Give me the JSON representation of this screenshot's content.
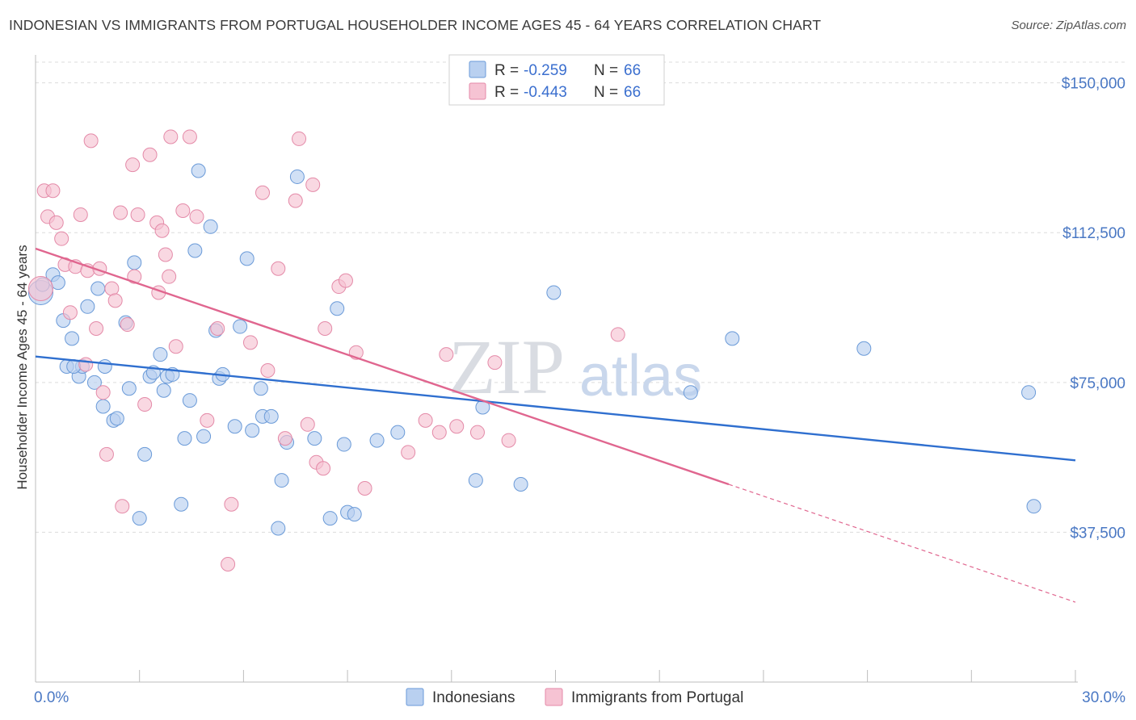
{
  "title": "INDONESIAN VS IMMIGRANTS FROM PORTUGAL HOUSEHOLDER INCOME AGES 45 - 64 YEARS CORRELATION CHART",
  "source": "Source: ZipAtlas.com",
  "watermark": {
    "zip": "ZIP",
    "atlas": "atlas"
  },
  "colors": {
    "blue_fill": "#b9d0f0",
    "blue_stroke": "#6a9ad8",
    "blue_line": "#2f6fcf",
    "pink_fill": "#f6c3d3",
    "pink_stroke": "#e48aa8",
    "pink_line": "#e0668f",
    "grid": "#dcdcdc",
    "axis_text": "#4a78c4"
  },
  "legend": {
    "rows": [
      {
        "r_label": "R =",
        "r_value": "-0.259",
        "n_label": "N =",
        "n_value": "66",
        "color": "blue"
      },
      {
        "r_label": "R =",
        "r_value": "-0.443",
        "n_label": "N =",
        "n_value": "66",
        "color": "pink"
      }
    ]
  },
  "bottom_legend": {
    "series1": "Indonesians",
    "series2": "Immigrants from Portugal"
  },
  "chart_data": {
    "type": "scatter",
    "title": "INDONESIAN VS IMMIGRANTS FROM PORTUGAL HOUSEHOLDER INCOME AGES 45 - 64 YEARS CORRELATION CHART",
    "xlabel": "",
    "ylabel": "Householder Income Ages 45 - 64 years",
    "xlim": [
      0,
      30
    ],
    "ylim": [
      0,
      157000
    ],
    "x_tick_labels": {
      "left": "0.0%",
      "right": "30.0%"
    },
    "y_ticks": [
      {
        "value": 37500,
        "label": "$37,500"
      },
      {
        "value": 75000,
        "label": "$75,000"
      },
      {
        "value": 112500,
        "label": "$112,500"
      },
      {
        "value": 150000,
        "label": "$150,000"
      }
    ],
    "series": [
      {
        "name": "Indonesians",
        "color": "blue",
        "r": -0.259,
        "n": 66,
        "trend": {
          "x0": 0,
          "y0": 81500,
          "x1": 30,
          "y1": 55500,
          "dashed_from": null
        },
        "points": [
          [
            0.15,
            97500,
            "lg"
          ],
          [
            0.2,
            99500
          ],
          [
            0.5,
            102000
          ],
          [
            0.65,
            100000
          ],
          [
            0.8,
            90500
          ],
          [
            0.9,
            79000
          ],
          [
            1.05,
            86000
          ],
          [
            1.25,
            76500
          ],
          [
            1.35,
            79000
          ],
          [
            1.5,
            94000
          ],
          [
            1.7,
            75000
          ],
          [
            1.8,
            98500
          ],
          [
            1.95,
            69000
          ],
          [
            2.0,
            79000
          ],
          [
            2.25,
            65500
          ],
          [
            2.35,
            66000
          ],
          [
            2.6,
            90000
          ],
          [
            2.7,
            73500
          ],
          [
            2.85,
            105000
          ],
          [
            3.0,
            41000
          ],
          [
            3.15,
            57000
          ],
          [
            3.3,
            76500
          ],
          [
            3.4,
            77500
          ],
          [
            3.6,
            82000
          ],
          [
            3.7,
            73000
          ],
          [
            3.8,
            76500
          ],
          [
            3.95,
            77000
          ],
          [
            4.2,
            44500
          ],
          [
            4.3,
            61000
          ],
          [
            4.45,
            70500
          ],
          [
            4.6,
            108000
          ],
          [
            4.7,
            128000
          ],
          [
            4.85,
            61500
          ],
          [
            5.05,
            114000
          ],
          [
            5.2,
            88000
          ],
          [
            5.3,
            76000
          ],
          [
            5.4,
            77000
          ],
          [
            5.75,
            64000
          ],
          [
            5.9,
            89000
          ],
          [
            6.1,
            106000
          ],
          [
            6.25,
            63000
          ],
          [
            6.5,
            73500
          ],
          [
            6.55,
            66500
          ],
          [
            6.8,
            66500
          ],
          [
            7.0,
            38500
          ],
          [
            7.1,
            50500
          ],
          [
            7.25,
            60000
          ],
          [
            7.55,
            126500
          ],
          [
            8.05,
            61000
          ],
          [
            8.5,
            41000
          ],
          [
            8.7,
            93500
          ],
          [
            8.9,
            59500
          ],
          [
            9.0,
            42500
          ],
          [
            9.2,
            42000
          ],
          [
            9.85,
            60500
          ],
          [
            10.45,
            62500
          ],
          [
            12.9,
            68800
          ],
          [
            12.7,
            50500
          ],
          [
            14.0,
            49500
          ],
          [
            14.95,
            97500
          ],
          [
            18.9,
            72500
          ],
          [
            20.1,
            86000
          ],
          [
            23.9,
            83500
          ],
          [
            28.65,
            72500
          ],
          [
            28.8,
            44000
          ],
          [
            1.1,
            79000
          ]
        ]
      },
      {
        "name": "Immigrants from Portugal",
        "color": "pink",
        "r": -0.443,
        "n": 66,
        "trend": {
          "x0": 0,
          "y0": 108500,
          "x1": 30,
          "y1": 20000,
          "dashed_from": 20.0
        },
        "points": [
          [
            0.15,
            98500,
            "lg"
          ],
          [
            0.25,
            123000
          ],
          [
            0.35,
            116500
          ],
          [
            0.5,
            123000
          ],
          [
            0.6,
            115000
          ],
          [
            0.75,
            111000
          ],
          [
            0.85,
            104500
          ],
          [
            1.0,
            92500
          ],
          [
            1.15,
            104000
          ],
          [
            1.3,
            117000
          ],
          [
            1.45,
            79500
          ],
          [
            1.5,
            103000
          ],
          [
            1.6,
            135500
          ],
          [
            1.75,
            88500
          ],
          [
            1.85,
            103500
          ],
          [
            1.95,
            72500
          ],
          [
            2.05,
            57000
          ],
          [
            2.2,
            98500
          ],
          [
            2.3,
            95500
          ],
          [
            2.45,
            117500
          ],
          [
            2.65,
            89500
          ],
          [
            2.8,
            129500
          ],
          [
            2.85,
            101500
          ],
          [
            2.95,
            117000
          ],
          [
            3.15,
            69500
          ],
          [
            3.3,
            132000
          ],
          [
            3.5,
            115000
          ],
          [
            3.55,
            97500
          ],
          [
            3.65,
            113000
          ],
          [
            3.75,
            107000
          ],
          [
            3.85,
            101500
          ],
          [
            3.9,
            136500
          ],
          [
            4.05,
            84000
          ],
          [
            4.25,
            118000
          ],
          [
            4.45,
            136500
          ],
          [
            4.65,
            116500
          ],
          [
            4.95,
            65500
          ],
          [
            5.25,
            88500
          ],
          [
            5.55,
            29500
          ],
          [
            5.65,
            44500
          ],
          [
            6.2,
            85000
          ],
          [
            6.55,
            122500
          ],
          [
            6.7,
            78000
          ],
          [
            7.0,
            103500
          ],
          [
            7.2,
            61000
          ],
          [
            7.5,
            120500
          ],
          [
            7.6,
            136000
          ],
          [
            7.85,
            64500
          ],
          [
            8.0,
            124500
          ],
          [
            8.1,
            55000
          ],
          [
            8.3,
            53500
          ],
          [
            8.35,
            88500
          ],
          [
            8.75,
            99000
          ],
          [
            8.95,
            100500
          ],
          [
            9.25,
            82500
          ],
          [
            9.5,
            48500
          ],
          [
            10.75,
            57500
          ],
          [
            11.25,
            65500
          ],
          [
            11.65,
            62500
          ],
          [
            11.85,
            82000
          ],
          [
            12.15,
            64000
          ],
          [
            12.75,
            62500
          ],
          [
            13.25,
            80000
          ],
          [
            13.65,
            60500
          ],
          [
            16.8,
            87000
          ],
          [
            2.5,
            44000
          ]
        ]
      }
    ]
  }
}
